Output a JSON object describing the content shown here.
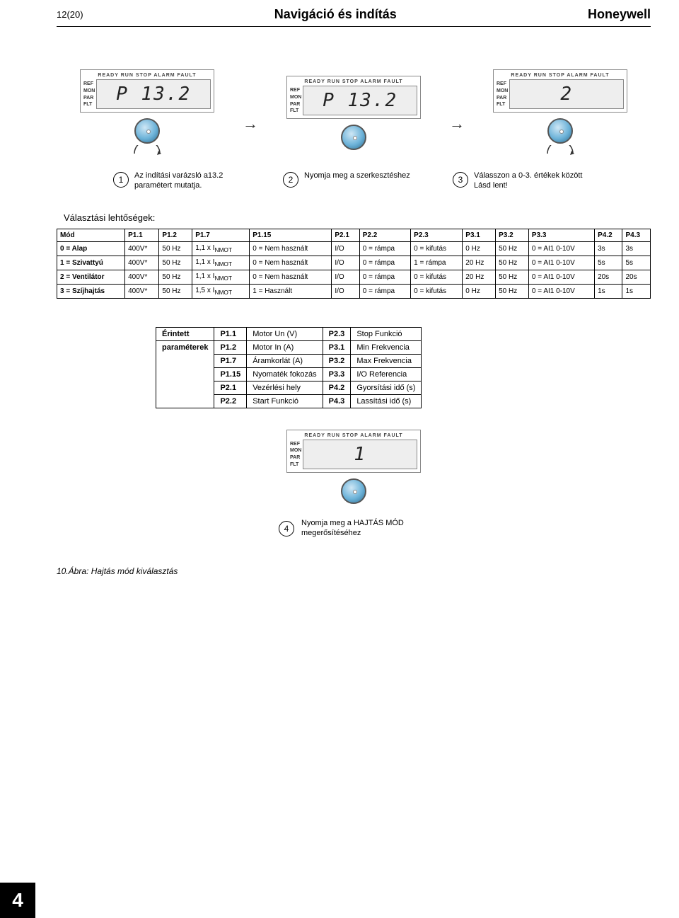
{
  "header": {
    "page_num": "12(20)",
    "title": "Navigáció és indítás",
    "brand": "Honeywell"
  },
  "lcd": {
    "top_labels": "READY  RUN  STOP  ALARM  FAULT",
    "side_labels": [
      "REF",
      "MON",
      "PAR",
      "FLT"
    ],
    "screens": [
      "P 13.2",
      "P 13.2",
      "2"
    ],
    "screen4": "1"
  },
  "steps": [
    {
      "num": "1",
      "text": "Az indítási varázsló a13.2 paramétert mutatja."
    },
    {
      "num": "2",
      "text": "Nyomja meg a szerkesztéshez"
    },
    {
      "num": "3",
      "text": "Válasszon a 0-3. értékek között Lásd lent!"
    }
  ],
  "sel_heading": "Választási lehtőségek:",
  "big_table": {
    "headers": [
      "Mód",
      "P1.1",
      "P1.2",
      "P1.7",
      "P1.15",
      "P2.1",
      "P2.2",
      "P2.3",
      "P3.1",
      "P3.2",
      "P3.3",
      "P4.2",
      "P4.3"
    ],
    "rows": [
      [
        "0 = Alap",
        "400V*",
        "50 Hz",
        "1,1 x I<sub>NMOT</sub>",
        "0 = Nem használt",
        "I/O",
        "0 = rámpa",
        "0 = kifutás",
        "0 Hz",
        "50 Hz",
        "0 = AI1 0-10V",
        "3s",
        "3s"
      ],
      [
        "1 = Szivattyú",
        "400V*",
        "50 Hz",
        "1,1 x I<sub>NMOT</sub>",
        "0 = Nem használt",
        "I/O",
        "0 = rámpa",
        "1 = rámpa",
        "20 Hz",
        "50 Hz",
        "0 = AI1 0-10V",
        "5s",
        "5s"
      ],
      [
        "2 = Ventilátor",
        "400V*",
        "50 Hz",
        "1,1 x I<sub>NMOT</sub>",
        "0 = Nem használt",
        "I/O",
        "0 = rámpa",
        "0 = kifutás",
        "20 Hz",
        "50 Hz",
        "0 = AI1 0-10V",
        "20s",
        "20s"
      ],
      [
        "3 = Szíjhajtás",
        "400V*",
        "50 Hz",
        "1,5 x I<sub>NMOT</sub>",
        "1 = Használt",
        "I/O",
        "0 = rámpa",
        "0 = kifutás",
        "0 Hz",
        "50 Hz",
        "0 = AI1 0-10V",
        "1s",
        "1s"
      ]
    ]
  },
  "small_table": {
    "label1": "Érintett",
    "label2": "paraméterek",
    "rows": [
      [
        "P1.1",
        "Motor Un (V)",
        "P2.3",
        "Stop Funkció"
      ],
      [
        "P1.2",
        "Motor In (A)",
        "P3.1",
        "Min Frekvencia"
      ],
      [
        "P1.7",
        "Áramkorlát (A)",
        "P3.2",
        "Max Frekvencia"
      ],
      [
        "P1.15",
        "Nyomaték fokozás",
        "P3.3",
        "I/O Referencia"
      ],
      [
        "P2.1",
        "Vezérlési hely",
        "P4.2",
        "Gyorsítási idő (s)"
      ],
      [
        "P2.2",
        "Start Funkció",
        "P4.3",
        "Lassítási idő (s)"
      ]
    ]
  },
  "step4": {
    "num": "4",
    "text": "Nyomja meg a HAJTÁS MÓD megerősítéséhez"
  },
  "caption": "10.Ábra: Hajtás mód kiválasztás",
  "side_tab": "4",
  "colors": {
    "knob_border": "#555555",
    "knob_light": "#cfe7f5",
    "knob_mid": "#6db3d9",
    "knob_dark": "#2a6a8e"
  }
}
